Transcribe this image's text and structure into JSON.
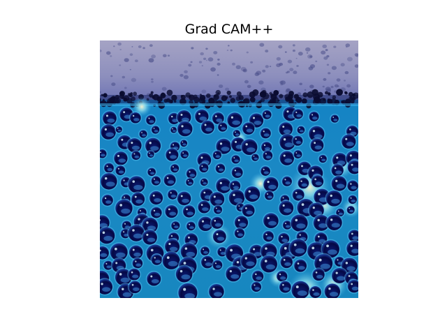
{
  "figure": {
    "title": "Grad CAM++"
  },
  "image": {
    "subject": "water-droplets-gradcam-overlay",
    "colors": {
      "top_band": "#8c8fb8",
      "water": "#1a86c2",
      "droplet_dark": "#050a4a",
      "hotspot": "#f6f0c8"
    }
  }
}
